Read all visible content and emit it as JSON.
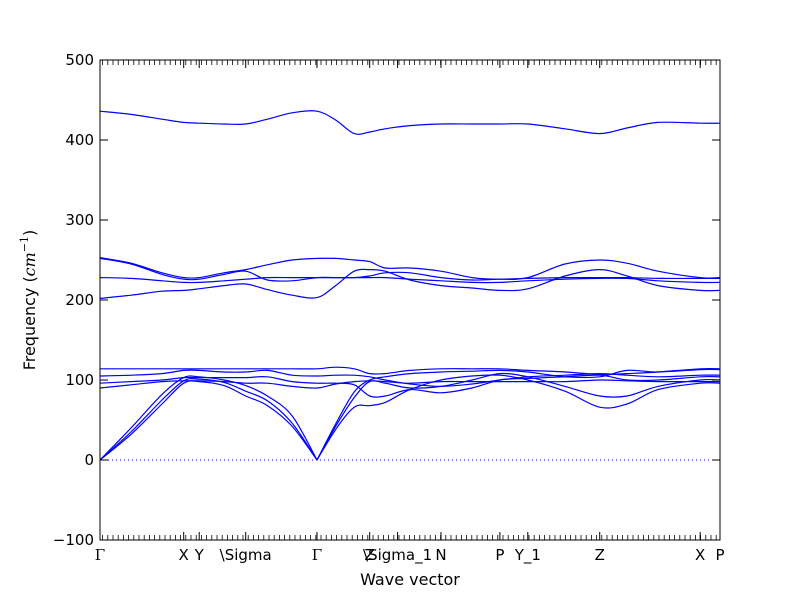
{
  "chart_data": {
    "type": "line",
    "xlabel": "Wave vector",
    "ylabel": "Frequency ($cm^{-1}$)",
    "ylabel_text": "Frequency (",
    "ylabel_unit": "cm",
    "ylabel_exp": "−1",
    "ylabel_close": ")",
    "ylim": [
      -100,
      500
    ],
    "yticks": [
      -100,
      0,
      100,
      200,
      300,
      400,
      500
    ],
    "xlim": [
      0,
      100
    ],
    "xticks": [
      {
        "x": 0,
        "label": "Γ"
      },
      {
        "x": 13.5,
        "label": "X"
      },
      {
        "x": 16.0,
        "label": "Y"
      },
      {
        "x": 23.5,
        "label": "\\Sigma"
      },
      {
        "x": 35.0,
        "label": "Γ"
      },
      {
        "x": 43.5,
        "label": "Z"
      },
      {
        "x": 48.0,
        "label": "\\Sigma_1"
      },
      {
        "x": 55.0,
        "label": "N"
      },
      {
        "x": 64.5,
        "label": "P"
      },
      {
        "x": 69.0,
        "label": "Y_1"
      },
      {
        "x": 80.6,
        "label": "Z"
      },
      {
        "x": 96.8,
        "label": "X"
      },
      {
        "x": 100,
        "label": "P"
      }
    ],
    "zero_line": true,
    "line_color": "#0000ff",
    "series": [
      {
        "values": [
          [
            0,
            0
          ],
          [
            5,
            32
          ],
          [
            10,
            70
          ],
          [
            13.5,
            96
          ],
          [
            16,
            98
          ],
          [
            20,
            93
          ],
          [
            23.5,
            80
          ],
          [
            27,
            68
          ],
          [
            31,
            42
          ],
          [
            35,
            0
          ]
        ]
      },
      {
        "values": [
          [
            0,
            0
          ],
          [
            5,
            35
          ],
          [
            10,
            75
          ],
          [
            13.5,
            99
          ],
          [
            16,
            101
          ],
          [
            20,
            97
          ],
          [
            23.5,
            86
          ],
          [
            27,
            74
          ],
          [
            31,
            46
          ],
          [
            35,
            0
          ]
        ]
      },
      {
        "values": [
          [
            0,
            0
          ],
          [
            5,
            40
          ],
          [
            10,
            82
          ],
          [
            13.5,
            103
          ],
          [
            16,
            104
          ],
          [
            20,
            100
          ],
          [
            23.5,
            93
          ],
          [
            27,
            80
          ],
          [
            31,
            55
          ],
          [
            35,
            0
          ]
        ]
      },
      {
        "values": [
          [
            35,
            0
          ],
          [
            38,
            38
          ],
          [
            41,
            66
          ],
          [
            43.5,
            68
          ],
          [
            46,
            72
          ],
          [
            50,
            88
          ],
          [
            55,
            100
          ],
          [
            60,
            105
          ],
          [
            64.5,
            106
          ],
          [
            69,
            100
          ],
          [
            75,
            86
          ],
          [
            80.6,
            66
          ],
          [
            85,
            70
          ],
          [
            90,
            88
          ],
          [
            96.8,
            96
          ],
          [
            100,
            96
          ]
        ]
      },
      {
        "values": [
          [
            35,
            0
          ],
          [
            38,
            42
          ],
          [
            41,
            78
          ],
          [
            43.5,
            98
          ],
          [
            46,
            96
          ],
          [
            50,
            90
          ],
          [
            55,
            92
          ],
          [
            60,
            100
          ],
          [
            64.5,
            108
          ],
          [
            69,
            104
          ],
          [
            75,
            92
          ],
          [
            80.6,
            80
          ],
          [
            85,
            80
          ],
          [
            90,
            92
          ],
          [
            96.8,
            100
          ],
          [
            100,
            100
          ]
        ]
      },
      {
        "values": [
          [
            35,
            0
          ],
          [
            38,
            45
          ],
          [
            41,
            85
          ],
          [
            43.5,
            100
          ],
          [
            46,
            104
          ],
          [
            50,
            108
          ],
          [
            55,
            110
          ],
          [
            60,
            111
          ],
          [
            64.5,
            112
          ],
          [
            69,
            110
          ],
          [
            75,
            104
          ],
          [
            80.6,
            104
          ],
          [
            85,
            112
          ],
          [
            90,
            110
          ],
          [
            96.8,
            113
          ],
          [
            100,
            113
          ]
        ]
      },
      {
        "values": [
          [
            0,
            90
          ],
          [
            5,
            94
          ],
          [
            10,
            98
          ],
          [
            13.5,
            99
          ],
          [
            16,
            99
          ],
          [
            20,
            98
          ],
          [
            23.5,
            96
          ],
          [
            27,
            96
          ],
          [
            31,
            92
          ],
          [
            35,
            90
          ],
          [
            38,
            95
          ],
          [
            41,
            98
          ],
          [
            43.5,
            99
          ],
          [
            46,
            98
          ],
          [
            50,
            96
          ],
          [
            55,
            98
          ],
          [
            60,
            98
          ],
          [
            64.5,
            98
          ],
          [
            69,
            98
          ],
          [
            75,
            98
          ],
          [
            80.6,
            100
          ],
          [
            85,
            99
          ],
          [
            90,
            98
          ],
          [
            96.8,
            98
          ],
          [
            100,
            98
          ]
        ]
      },
      {
        "values": [
          [
            0,
            96
          ],
          [
            5,
            98
          ],
          [
            10,
            100
          ],
          [
            13.5,
            103
          ],
          [
            16,
            103
          ],
          [
            20,
            103
          ],
          [
            23.5,
            103
          ],
          [
            27,
            104
          ],
          [
            31,
            98
          ],
          [
            35,
            96
          ],
          [
            38,
            96
          ],
          [
            41,
            94
          ],
          [
            43.5,
            80
          ],
          [
            46,
            80
          ],
          [
            50,
            88
          ],
          [
            55,
            84
          ],
          [
            60,
            90
          ],
          [
            64.5,
            100
          ],
          [
            69,
            102
          ],
          [
            75,
            104
          ],
          [
            80.6,
            106
          ],
          [
            85,
            100
          ],
          [
            90,
            100
          ],
          [
            96.8,
            104
          ],
          [
            100,
            104
          ]
        ]
      },
      {
        "values": [
          [
            0,
            105
          ],
          [
            5,
            106
          ],
          [
            10,
            108
          ],
          [
            13.5,
            112
          ],
          [
            16,
            112
          ],
          [
            20,
            110
          ],
          [
            23.5,
            110
          ],
          [
            27,
            112
          ],
          [
            31,
            106
          ],
          [
            35,
            105
          ],
          [
            38,
            106
          ],
          [
            41,
            106
          ],
          [
            43.5,
            104
          ],
          [
            46,
            100
          ],
          [
            50,
            95
          ],
          [
            55,
            92
          ],
          [
            60,
            95
          ],
          [
            64.5,
            100
          ],
          [
            69,
            104
          ],
          [
            75,
            106
          ],
          [
            80.6,
            108
          ],
          [
            85,
            106
          ],
          [
            90,
            104
          ],
          [
            96.8,
            106
          ],
          [
            100,
            106
          ]
        ]
      },
      {
        "values": [
          [
            0,
            114
          ],
          [
            5,
            114
          ],
          [
            10,
            114
          ],
          [
            13.5,
            114
          ],
          [
            16,
            114
          ],
          [
            20,
            114
          ],
          [
            23.5,
            114
          ],
          [
            27,
            114
          ],
          [
            31,
            114
          ],
          [
            35,
            114
          ],
          [
            38,
            116
          ],
          [
            41,
            114
          ],
          [
            43.5,
            108
          ],
          [
            46,
            108
          ],
          [
            50,
            112
          ],
          [
            55,
            114
          ],
          [
            60,
            114
          ],
          [
            64.5,
            114
          ],
          [
            69,
            112
          ],
          [
            75,
            110
          ],
          [
            80.6,
            107
          ],
          [
            85,
            108
          ],
          [
            90,
            110
          ],
          [
            96.8,
            114
          ],
          [
            100,
            114
          ]
        ]
      },
      {
        "values": [
          [
            0,
            202
          ],
          [
            5,
            206
          ],
          [
            10,
            211
          ],
          [
            13.5,
            212
          ],
          [
            16,
            214
          ],
          [
            20,
            218
          ],
          [
            23.5,
            220
          ],
          [
            27,
            213
          ],
          [
            31,
            206
          ],
          [
            35,
            203
          ],
          [
            38,
            218
          ],
          [
            41,
            236
          ],
          [
            43.5,
            238
          ],
          [
            46,
            236
          ],
          [
            50,
            225
          ],
          [
            55,
            218
          ],
          [
            60,
            215
          ],
          [
            64.5,
            212
          ],
          [
            69,
            214
          ],
          [
            75,
            230
          ],
          [
            80.6,
            238
          ],
          [
            85,
            230
          ],
          [
            90,
            218
          ],
          [
            96.8,
            212
          ],
          [
            100,
            212
          ]
        ]
      },
      {
        "values": [
          [
            0,
            228
          ],
          [
            5,
            227
          ],
          [
            10,
            224
          ],
          [
            13.5,
            222
          ],
          [
            16,
            222
          ],
          [
            20,
            224
          ],
          [
            23.5,
            226
          ],
          [
            27,
            228
          ],
          [
            31,
            228
          ],
          [
            35,
            228
          ],
          [
            38,
            228
          ],
          [
            41,
            228
          ],
          [
            43.5,
            228
          ],
          [
            46,
            228
          ],
          [
            50,
            226
          ],
          [
            55,
            224
          ],
          [
            60,
            222
          ],
          [
            64.5,
            222
          ],
          [
            69,
            224
          ],
          [
            75,
            226
          ],
          [
            80.6,
            227
          ],
          [
            85,
            227
          ],
          [
            90,
            224
          ],
          [
            96.8,
            222
          ],
          [
            100,
            222
          ]
        ]
      },
      {
        "values": [
          [
            0,
            252
          ],
          [
            5,
            245
          ],
          [
            10,
            232
          ],
          [
            13.5,
            226
          ],
          [
            16,
            226
          ],
          [
            20,
            232
          ],
          [
            23.5,
            236
          ],
          [
            27,
            225
          ],
          [
            31,
            224
          ],
          [
            35,
            228
          ],
          [
            38,
            228
          ],
          [
            41,
            228
          ],
          [
            43.5,
            230
          ],
          [
            46,
            234
          ],
          [
            50,
            234
          ],
          [
            55,
            228
          ],
          [
            60,
            225
          ],
          [
            64.5,
            226
          ],
          [
            69,
            227
          ],
          [
            75,
            228
          ],
          [
            80.6,
            228
          ],
          [
            85,
            228
          ],
          [
            90,
            227
          ],
          [
            96.8,
            227
          ],
          [
            100,
            227
          ]
        ]
      },
      {
        "values": [
          [
            0,
            253
          ],
          [
            5,
            246
          ],
          [
            10,
            234
          ],
          [
            13.5,
            228
          ],
          [
            16,
            228
          ],
          [
            20,
            234
          ],
          [
            23.5,
            238
          ],
          [
            27,
            244
          ],
          [
            31,
            250
          ],
          [
            35,
            252
          ],
          [
            38,
            252
          ],
          [
            41,
            250
          ],
          [
            43.5,
            248
          ],
          [
            46,
            240
          ],
          [
            50,
            240
          ],
          [
            55,
            236
          ],
          [
            60,
            228
          ],
          [
            64.5,
            226
          ],
          [
            69,
            228
          ],
          [
            75,
            245
          ],
          [
            80.6,
            250
          ],
          [
            85,
            246
          ],
          [
            90,
            236
          ],
          [
            96.8,
            228
          ],
          [
            100,
            228
          ]
        ]
      },
      {
        "values": [
          [
            0,
            436
          ],
          [
            5,
            432
          ],
          [
            10,
            426
          ],
          [
            13.5,
            422
          ],
          [
            16,
            421
          ],
          [
            20,
            420
          ],
          [
            23.5,
            420
          ],
          [
            27,
            426
          ],
          [
            31,
            434
          ],
          [
            35,
            436
          ],
          [
            38,
            425
          ],
          [
            41,
            408
          ],
          [
            43.5,
            410
          ],
          [
            46,
            414
          ],
          [
            50,
            418
          ],
          [
            55,
            420
          ],
          [
            60,
            420
          ],
          [
            64.5,
            420
          ],
          [
            69,
            420
          ],
          [
            75,
            414
          ],
          [
            80.6,
            408
          ],
          [
            85,
            415
          ],
          [
            90,
            422
          ],
          [
            96.8,
            421
          ],
          [
            100,
            421
          ]
        ]
      }
    ]
  }
}
